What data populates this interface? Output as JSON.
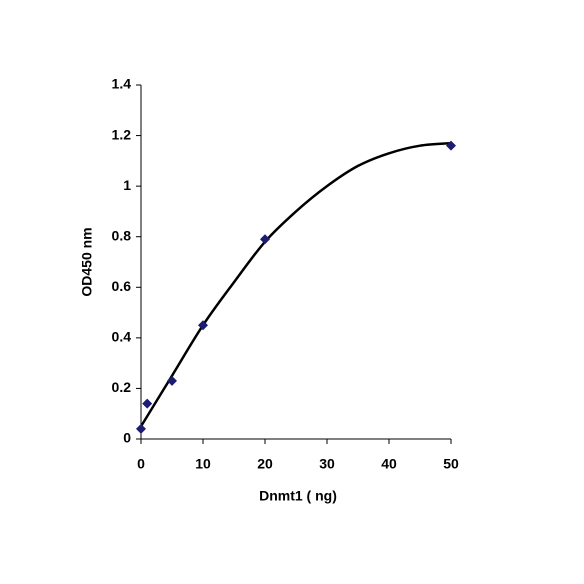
{
  "chart_data": {
    "type": "scatter",
    "x_label": "Dnmt1 ( ng)",
    "y_label": "OD450 nm",
    "x": [
      0,
      1,
      5,
      10,
      20,
      50
    ],
    "values": [
      0.04,
      0.14,
      0.23,
      0.45,
      0.79,
      1.16
    ],
    "color": "#1c1c72",
    "trendline": {
      "x": [
        0,
        5,
        10,
        15,
        20,
        25,
        30,
        35,
        40,
        45,
        50
      ],
      "values": [
        0.05,
        0.25,
        0.45,
        0.62,
        0.78,
        0.9,
        1.0,
        1.08,
        1.13,
        1.16,
        1.17
      ],
      "color": "#000000"
    },
    "xlim": [
      0,
      50
    ],
    "xticks": [
      0,
      10,
      20,
      30,
      40,
      50
    ],
    "ylim": [
      0,
      1.4
    ],
    "yticks": [
      0,
      0.2,
      0.4,
      0.6,
      0.8,
      1,
      1.2,
      1.4
    ]
  }
}
